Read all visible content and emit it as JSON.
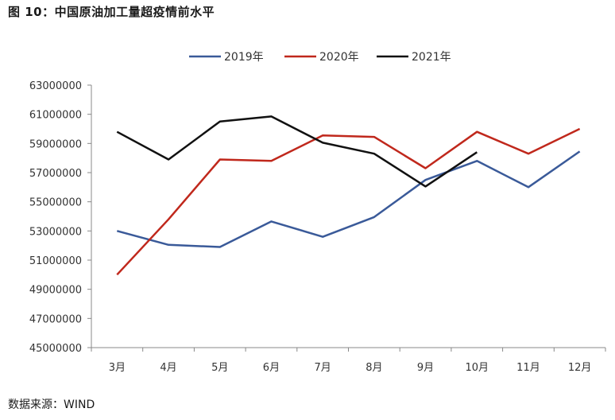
{
  "header": {
    "title": "图 10：中国原油加工量超疫情前水平"
  },
  "footer": {
    "source": "数据来源：WIND"
  },
  "chart_data": {
    "type": "line",
    "title": "",
    "xlabel": "",
    "ylabel": "",
    "categories": [
      "3月",
      "4月",
      "5月",
      "6月",
      "7月",
      "8月",
      "9月",
      "10月",
      "11月",
      "12月"
    ],
    "ylim": [
      45000000,
      63000000
    ],
    "yticks": [
      45000000,
      47000000,
      49000000,
      51000000,
      53000000,
      55000000,
      57000000,
      59000000,
      61000000,
      63000000
    ],
    "grid": false,
    "legend_position": "top",
    "series": [
      {
        "name": "2019年",
        "color": "#3a5a99",
        "values": [
          53000000,
          52050000,
          51900000,
          53650000,
          52600000,
          53950000,
          56500000,
          57800000,
          56000000,
          58450000
        ]
      },
      {
        "name": "2020年",
        "color": "#c0281c",
        "values": [
          50000000,
          53800000,
          57900000,
          57800000,
          59550000,
          59450000,
          57300000,
          59800000,
          58300000,
          60000000
        ]
      },
      {
        "name": "2021年",
        "color": "#111111",
        "values": [
          59800000,
          57900000,
          60500000,
          60850000,
          59050000,
          58300000,
          56050000,
          58400000,
          null,
          null
        ]
      }
    ]
  }
}
